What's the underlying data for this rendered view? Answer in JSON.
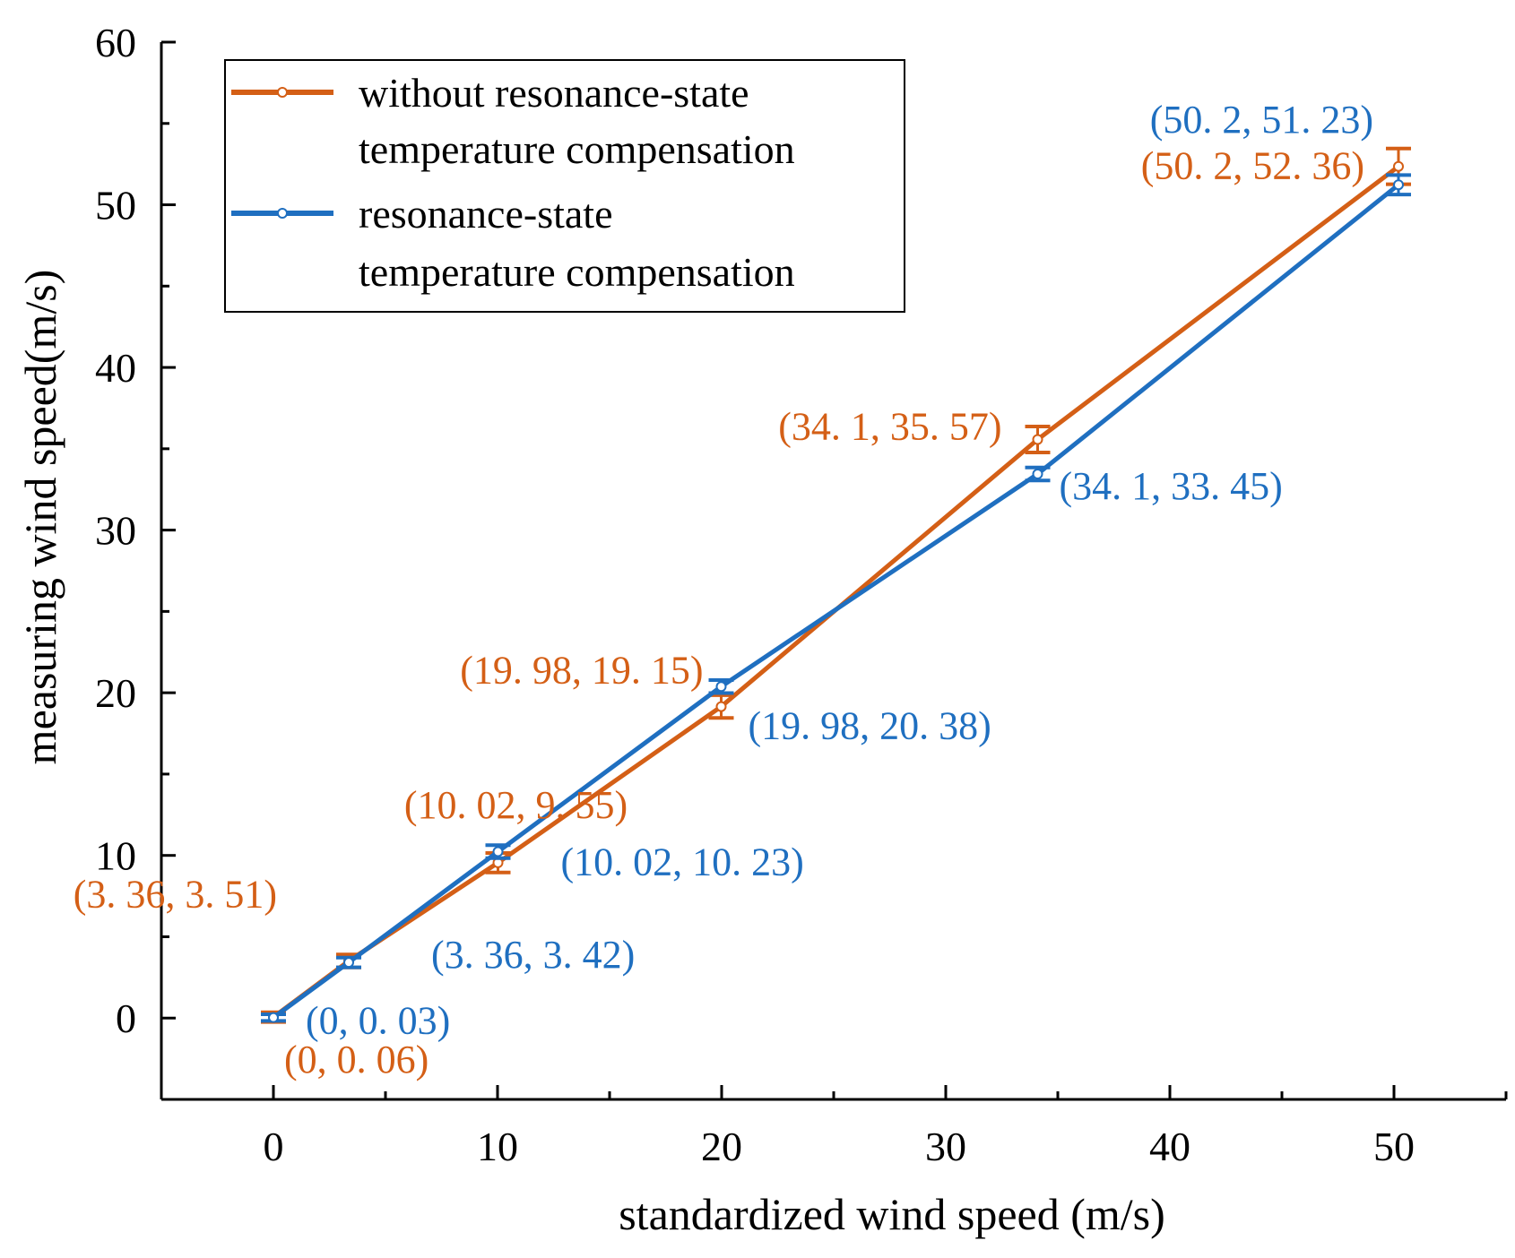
{
  "chart_data": {
    "type": "line",
    "title": "",
    "xlabel": "standardized wind speed (m/s)",
    "ylabel": "measuring wind speed(m/s)",
    "xlim": [
      -5,
      55
    ],
    "ylim": [
      -5,
      60
    ],
    "xticks": [
      0,
      10,
      20,
      30,
      40,
      50
    ],
    "yticks": [
      0,
      10,
      20,
      30,
      40,
      50,
      60
    ],
    "grid": false,
    "legend_position": "top-left",
    "series": [
      {
        "name": "without resonance-state temperature compensation",
        "legend_line1": "without  resonance-state",
        "legend_line2": "temperature compensation",
        "color": "#d45f16",
        "x": [
          0,
          3.36,
          10.02,
          19.98,
          34.1,
          50.2
        ],
        "y": [
          0.06,
          3.51,
          9.55,
          19.15,
          35.57,
          52.36
        ],
        "err": [
          0.3,
          0.4,
          0.6,
          0.7,
          0.8,
          1.1
        ],
        "labels": [
          "(0, 0. 06)",
          "(3. 36, 3. 51)",
          "(10. 02, 9. 55)",
          "(19. 98, 19. 15)",
          "(34. 1, 35. 57)",
          "(50. 2, 52. 36)"
        ]
      },
      {
        "name": "resonance-state temperature compensation",
        "legend_line1": "resonance-state",
        "legend_line2": "temperature compensation",
        "color": "#1f6fc0",
        "x": [
          0,
          3.36,
          10.02,
          19.98,
          34.1,
          50.2
        ],
        "y": [
          0.03,
          3.42,
          10.23,
          20.38,
          33.45,
          51.23
        ],
        "err": [
          0.2,
          0.3,
          0.4,
          0.4,
          0.4,
          0.6
        ],
        "labels": [
          "(0, 0. 03)",
          "(3. 36, 3. 42)",
          "(10. 02, 10. 23)",
          "(19. 98, 20. 38)",
          "(34. 1, 33. 45)",
          "(50. 2, 51. 23)"
        ]
      }
    ]
  }
}
